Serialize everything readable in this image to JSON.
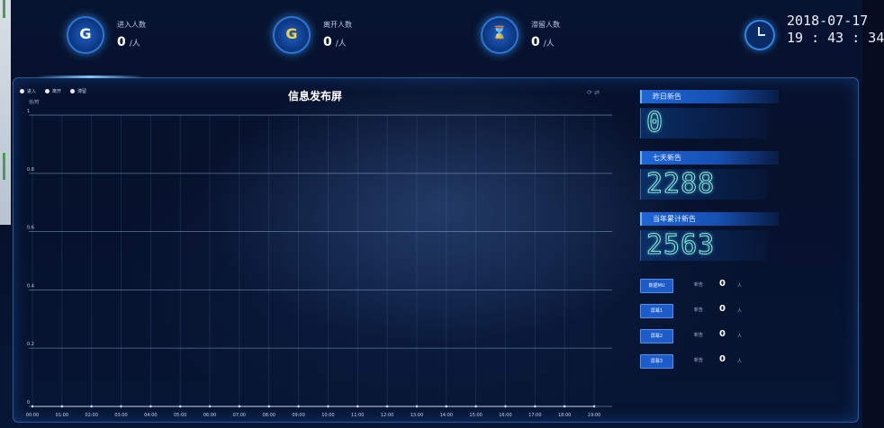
{
  "header": {
    "stats": [
      {
        "label": "进入人数",
        "value": "0",
        "unit": "/人",
        "icon": "enter-icon",
        "glyph": "G"
      },
      {
        "label": "离开人数",
        "value": "0",
        "unit": "/人",
        "icon": "exit-icon",
        "glyph": "G"
      },
      {
        "label": "滞留人数",
        "value": "0",
        "unit": "/人",
        "icon": "hourglass-icon",
        "glyph": "⌛"
      }
    ],
    "date": "2018-07-17",
    "time": "19 : 43 : 34"
  },
  "chart_panel": {
    "title": "信息发布屏",
    "unit_label": "信/时",
    "tools": "⟳ ⇄",
    "legend": [
      "进入",
      "离开",
      "滞留"
    ]
  },
  "chart_data": {
    "type": "line",
    "title": "信息发布屏",
    "ylabel": "信/时",
    "ylim": [
      0,
      1
    ],
    "yticks": [
      "0",
      "0.2",
      "0.4",
      "0.6",
      "0.8",
      "1"
    ],
    "categories": [
      "00:00",
      "01:00",
      "02:00",
      "03:00",
      "04:00",
      "05:00",
      "06:00",
      "07:00",
      "08:00",
      "09:00",
      "10:00",
      "11:00",
      "12:00",
      "13:00",
      "14:00",
      "15:00",
      "16:00",
      "17:00",
      "18:00",
      "19:00"
    ],
    "series": [
      {
        "name": "进入",
        "values": [
          0,
          0,
          0,
          0,
          0,
          0,
          0,
          0,
          0,
          0,
          0,
          0,
          0,
          0,
          0,
          0,
          0,
          0,
          0,
          0
        ]
      },
      {
        "name": "离开",
        "values": [
          0,
          0,
          0,
          0,
          0,
          0,
          0,
          0,
          0,
          0,
          0,
          0,
          0,
          0,
          0,
          0,
          0,
          0,
          0,
          0
        ]
      },
      {
        "name": "滞留",
        "values": [
          0,
          0,
          0,
          0,
          0,
          0,
          0,
          0,
          0,
          0,
          0,
          0,
          0,
          0,
          0,
          0,
          0,
          0,
          0,
          0
        ]
      }
    ],
    "grid": true,
    "legend_position": "top-left"
  },
  "side": {
    "today": {
      "label": "昨日新告",
      "value": "0"
    },
    "week": {
      "label": "七天新告",
      "value": "2288"
    },
    "year": {
      "label": "当年累计新告",
      "value": "2563"
    },
    "devices": [
      {
        "button": "数据MU",
        "label": "新告",
        "value": "0",
        "unit": "人"
      },
      {
        "button": "屏幕1",
        "label": "新告",
        "value": "0",
        "unit": "人"
      },
      {
        "button": "屏幕2",
        "label": "新告",
        "value": "0",
        "unit": "人"
      },
      {
        "button": "屏幕3",
        "label": "新告",
        "value": "0",
        "unit": "人"
      }
    ]
  },
  "colors": {
    "accent": "#1e5dc9",
    "digit": "#7cf0f0",
    "background": "#050c1e"
  }
}
